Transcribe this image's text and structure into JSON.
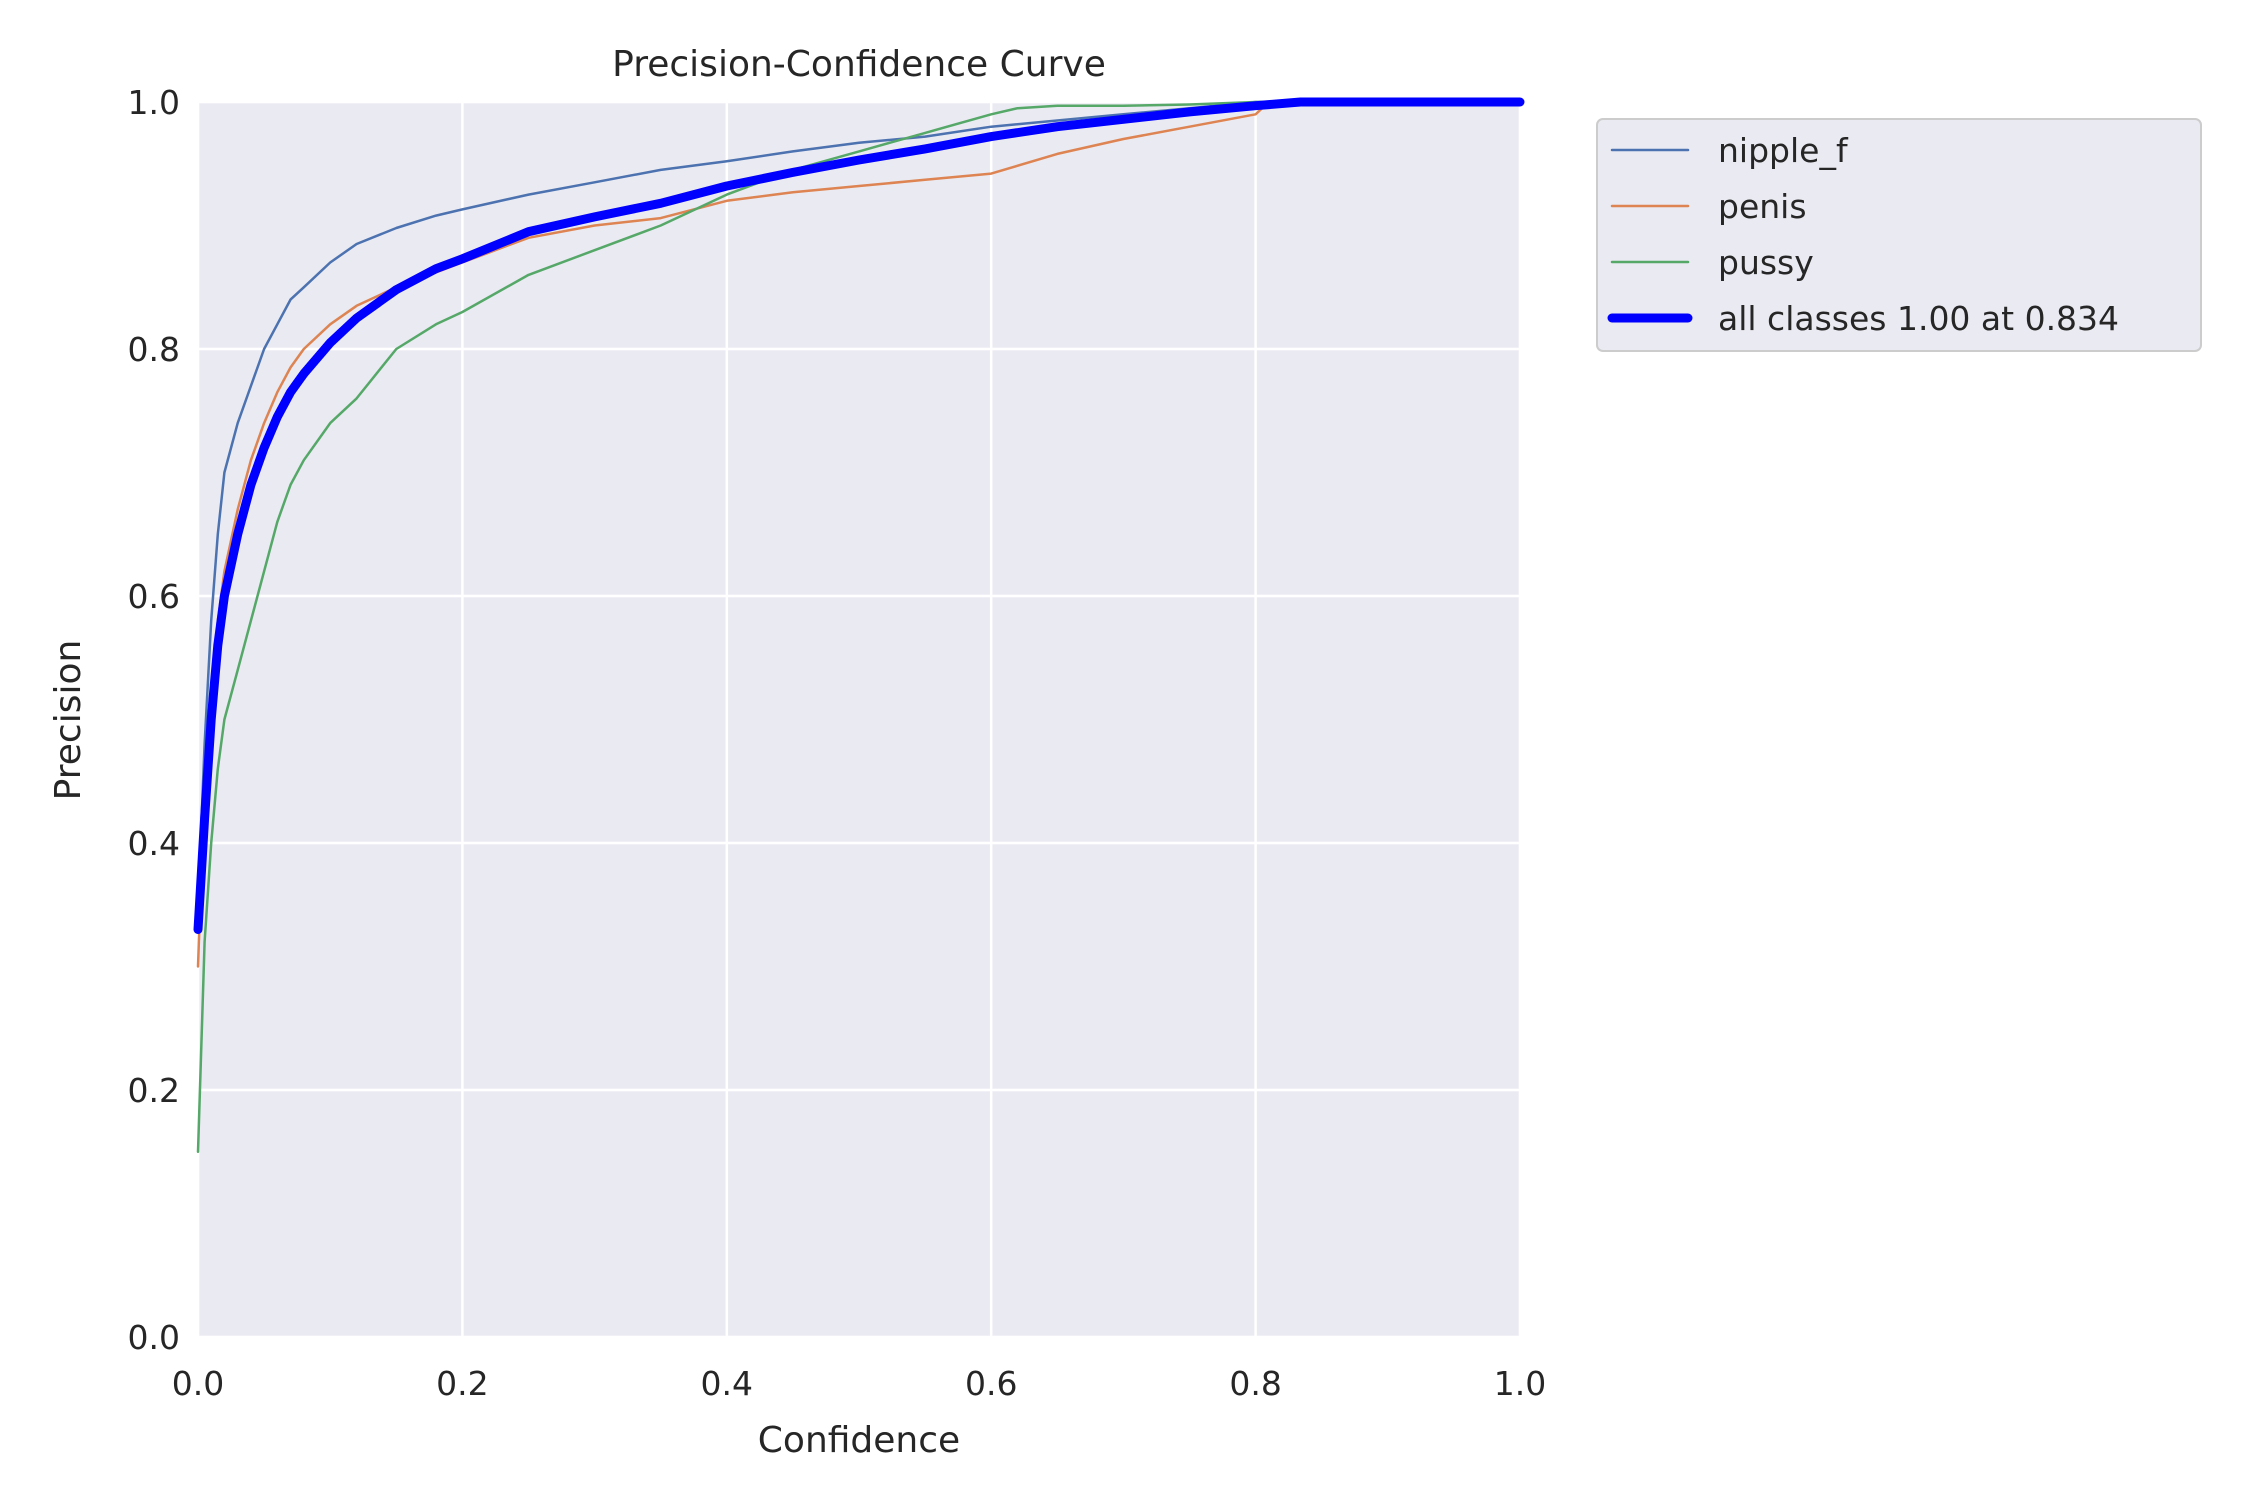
{
  "chart_data": {
    "type": "line",
    "title": "Precision-Confidence Curve",
    "xlabel": "Confidence",
    "ylabel": "Precision",
    "xlim": [
      0.0,
      1.0
    ],
    "ylim": [
      0.0,
      1.0
    ],
    "xticks": [
      0.0,
      0.2,
      0.4,
      0.6,
      0.8,
      1.0
    ],
    "yticks": [
      0.0,
      0.2,
      0.4,
      0.6,
      0.8,
      1.0
    ],
    "xtick_labels": [
      "0.0",
      "0.2",
      "0.4",
      "0.6",
      "0.8",
      "1.0"
    ],
    "ytick_labels": [
      "0.0",
      "0.2",
      "0.4",
      "0.6",
      "0.8",
      "1.0"
    ],
    "grid": true,
    "legend_position": "outside-top-right",
    "colors": {
      "plot_background": "#eaeaf2",
      "grid": "#ffffff",
      "figure_background": "#ffffff"
    },
    "series": [
      {
        "name": "nipple_f",
        "color": "#4c72b0",
        "line_width": "thin",
        "x": [
          0.0,
          0.005,
          0.01,
          0.015,
          0.02,
          0.03,
          0.04,
          0.05,
          0.06,
          0.07,
          0.08,
          0.1,
          0.12,
          0.15,
          0.18,
          0.2,
          0.25,
          0.3,
          0.35,
          0.4,
          0.45,
          0.5,
          0.55,
          0.6,
          0.65,
          0.7,
          0.75,
          0.8,
          0.834,
          0.85,
          0.9,
          0.95,
          1.0
        ],
        "y": [
          0.35,
          0.48,
          0.58,
          0.65,
          0.7,
          0.74,
          0.77,
          0.8,
          0.82,
          0.84,
          0.85,
          0.87,
          0.885,
          0.898,
          0.908,
          0.913,
          0.925,
          0.935,
          0.945,
          0.952,
          0.96,
          0.967,
          0.972,
          0.98,
          0.985,
          0.99,
          0.995,
          1.0,
          1.0,
          1.0,
          1.0,
          1.0,
          1.0
        ]
      },
      {
        "name": "penis",
        "color": "#dd8452",
        "line_width": "thin",
        "x": [
          0.0,
          0.005,
          0.01,
          0.015,
          0.02,
          0.03,
          0.04,
          0.05,
          0.06,
          0.07,
          0.08,
          0.1,
          0.12,
          0.15,
          0.18,
          0.2,
          0.25,
          0.3,
          0.35,
          0.4,
          0.45,
          0.5,
          0.55,
          0.6,
          0.65,
          0.7,
          0.75,
          0.8,
          0.805
        ],
        "y": [
          0.3,
          0.45,
          0.52,
          0.58,
          0.62,
          0.67,
          0.71,
          0.74,
          0.765,
          0.785,
          0.8,
          0.82,
          0.835,
          0.85,
          0.862,
          0.87,
          0.89,
          0.9,
          0.906,
          0.92,
          0.927,
          0.932,
          0.937,
          0.942,
          0.958,
          0.97,
          0.98,
          0.99,
          0.995
        ]
      },
      {
        "name": "pussy",
        "color": "#55a868",
        "line_width": "thin",
        "x": [
          0.0,
          0.005,
          0.01,
          0.015,
          0.02,
          0.03,
          0.04,
          0.05,
          0.06,
          0.07,
          0.08,
          0.1,
          0.12,
          0.15,
          0.18,
          0.2,
          0.25,
          0.3,
          0.35,
          0.4,
          0.45,
          0.5,
          0.55,
          0.6,
          0.62,
          0.65,
          0.7,
          0.75,
          0.8,
          0.834,
          0.85,
          0.9,
          0.95,
          1.0
        ],
        "y": [
          0.15,
          0.32,
          0.4,
          0.46,
          0.5,
          0.54,
          0.58,
          0.62,
          0.66,
          0.69,
          0.71,
          0.74,
          0.76,
          0.8,
          0.82,
          0.83,
          0.86,
          0.88,
          0.9,
          0.925,
          0.945,
          0.96,
          0.975,
          0.99,
          0.995,
          0.997,
          0.997,
          0.998,
          1.0,
          1.0,
          1.0,
          1.0,
          1.0,
          1.0
        ]
      },
      {
        "name": "all classes 1.00 at 0.834",
        "color": "#0000ff",
        "line_width": "thick",
        "x": [
          0.0,
          0.005,
          0.01,
          0.015,
          0.02,
          0.03,
          0.04,
          0.05,
          0.06,
          0.07,
          0.08,
          0.1,
          0.12,
          0.15,
          0.18,
          0.2,
          0.25,
          0.3,
          0.35,
          0.4,
          0.45,
          0.5,
          0.55,
          0.6,
          0.65,
          0.7,
          0.75,
          0.8,
          0.834,
          0.85,
          0.9,
          0.95,
          1.0
        ],
        "y": [
          0.33,
          0.42,
          0.5,
          0.56,
          0.6,
          0.65,
          0.69,
          0.72,
          0.745,
          0.765,
          0.78,
          0.805,
          0.825,
          0.848,
          0.865,
          0.873,
          0.895,
          0.907,
          0.918,
          0.932,
          0.943,
          0.953,
          0.962,
          0.972,
          0.98,
          0.986,
          0.992,
          0.997,
          1.0,
          1.0,
          1.0,
          1.0,
          1.0
        ]
      }
    ]
  }
}
